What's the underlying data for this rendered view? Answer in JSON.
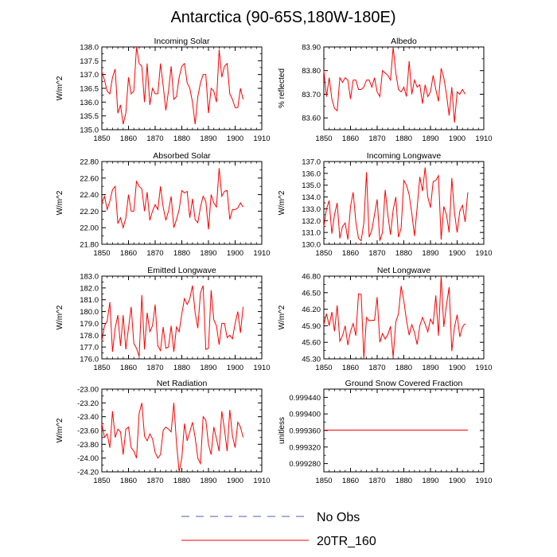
{
  "figure": {
    "title": "Antarctica (90-65S,180W-180E)",
    "colors": {
      "model": "#ff0000",
      "obs": "#5a5aaa",
      "axis": "#000000"
    }
  },
  "legend": {
    "entries": [
      {
        "label": "No Obs",
        "style": "dashed",
        "color": "#5a5aaa"
      },
      {
        "label": "20TR_160",
        "style": "solid",
        "color": "#ff0000"
      }
    ]
  },
  "chart_data": [
    {
      "type": "line",
      "title": "Incoming Solar",
      "ylabel": "W/m^2",
      "xlim": [
        1850,
        1910
      ],
      "ylim": [
        135.0,
        138.0
      ],
      "xticks": [
        "1850",
        "1860",
        "1870",
        "1880",
        "1890",
        "1900",
        "1910"
      ],
      "yticks": [
        "135.0",
        "135.5",
        "136.0",
        "136.5",
        "137.0",
        "137.5",
        "138.0"
      ],
      "x_start": 1850,
      "series": [
        {
          "name": "20TR_160",
          "values": [
            137.1,
            136.8,
            136.4,
            136.3,
            136.9,
            137.2,
            135.6,
            135.9,
            135.2,
            135.6,
            136.9,
            136.3,
            136.4,
            138.0,
            137.4,
            137.3,
            136.0,
            137.4,
            135.9,
            136.5,
            136.3,
            136.3,
            137.4,
            136.6,
            135.7,
            136.4,
            137.3,
            136.1,
            136.2,
            136.9,
            137.3,
            137.4,
            136.7,
            136.5,
            136.0,
            135.2,
            136.2,
            136.7,
            137.0,
            137.0,
            135.6,
            136.5,
            136.4,
            136.0,
            137.9,
            136.9,
            137.3,
            137.4,
            136.3,
            136.1,
            135.8,
            135.8,
            136.5,
            136.1
          ]
        }
      ]
    },
    {
      "type": "line",
      "title": "Albedo",
      "ylabel": "% reflected",
      "xlim": [
        1850,
        1910
      ],
      "ylim": [
        83.55,
        83.9
      ],
      "xticks": [
        "1850",
        "1860",
        "1870",
        "1880",
        "1890",
        "1900",
        "1910"
      ],
      "yticks": [
        "83.60",
        "83.70",
        "83.80",
        "83.90"
      ],
      "x_start": 1850,
      "series": [
        {
          "name": "20TR_160",
          "values": [
            83.8,
            83.69,
            83.77,
            83.68,
            83.64,
            83.63,
            83.77,
            83.75,
            83.77,
            83.76,
            83.68,
            83.76,
            83.76,
            83.72,
            83.72,
            83.73,
            83.76,
            83.76,
            83.73,
            83.77,
            83.71,
            83.69,
            83.8,
            83.79,
            83.78,
            83.76,
            83.9,
            83.79,
            83.72,
            83.71,
            83.73,
            83.69,
            83.84,
            83.7,
            83.76,
            83.73,
            83.74,
            83.66,
            83.74,
            83.69,
            83.71,
            83.78,
            83.72,
            83.67,
            83.81,
            83.77,
            83.7,
            83.61,
            83.73,
            83.58,
            83.71,
            83.7,
            83.72,
            83.7
          ]
        }
      ]
    },
    {
      "type": "line",
      "title": "Absorbed Solar",
      "ylabel": "W/m^2",
      "xlim": [
        1850,
        1910
      ],
      "ylim": [
        21.8,
        22.8
      ],
      "xticks": [
        "1850",
        "1860",
        "1870",
        "1880",
        "1890",
        "1900",
        "1910"
      ],
      "yticks": [
        "21.80",
        "22.00",
        "22.20",
        "22.40",
        "22.60",
        "22.80"
      ],
      "x_start": 1850,
      "series": [
        {
          "name": "20TR_160",
          "values": [
            22.3,
            22.38,
            22.22,
            22.32,
            22.46,
            22.5,
            22.05,
            22.12,
            22.0,
            22.12,
            22.4,
            22.2,
            22.2,
            22.56,
            22.5,
            22.47,
            22.2,
            22.43,
            22.09,
            22.2,
            22.28,
            22.22,
            22.5,
            22.25,
            22.09,
            22.2,
            22.38,
            22.0,
            22.1,
            22.22,
            22.45,
            22.42,
            22.44,
            22.12,
            22.35,
            22.1,
            22.06,
            22.25,
            22.38,
            22.32,
            21.98,
            22.4,
            22.3,
            22.25,
            22.72,
            22.38,
            22.44,
            22.45,
            22.1,
            22.22,
            22.22,
            22.24,
            22.3,
            22.25
          ]
        }
      ]
    },
    {
      "type": "line",
      "title": "Incoming Longwave",
      "ylabel": "W/m^2",
      "xlim": [
        1850,
        1910
      ],
      "ylim": [
        130.0,
        137.0
      ],
      "xticks": [
        "1850",
        "1860",
        "1870",
        "1880",
        "1890",
        "1900",
        "1910"
      ],
      "yticks": [
        "130.0",
        "131.0",
        "132.0",
        "133.0",
        "134.0",
        "135.0",
        "136.0",
        "137.0"
      ],
      "x_start": 1850,
      "series": [
        {
          "name": "20TR_160",
          "values": [
            131.5,
            133.0,
            133.7,
            130.9,
            132.5,
            133.5,
            130.5,
            131.5,
            131.8,
            130.4,
            133.2,
            134.4,
            131.9,
            130.5,
            130.3,
            131.8,
            136.1,
            130.6,
            131.2,
            132.5,
            133.8,
            130.3,
            131.0,
            134.6,
            132.5,
            130.8,
            132.9,
            134.0,
            130.6,
            131.4,
            135.4,
            135.0,
            134.2,
            132.6,
            130.7,
            133.1,
            135.7,
            134.5,
            136.5,
            134.0,
            133.1,
            135.3,
            135.4,
            135.8,
            130.4,
            133.2,
            132.5,
            131.0,
            135.6,
            132.7,
            131.0,
            132.8,
            133.3,
            131.9,
            134.4
          ]
        }
      ]
    },
    {
      "type": "line",
      "title": "Emitted Longwave",
      "ylabel": "W/m^2",
      "xlim": [
        1850,
        1910
      ],
      "ylim": [
        176.0,
        183.0
      ],
      "xticks": [
        "1850",
        "1860",
        "1870",
        "1880",
        "1890",
        "1900",
        "1910"
      ],
      "yticks": [
        "176.0",
        "177.0",
        "178.0",
        "179.0",
        "180.0",
        "181.0",
        "182.0",
        "183.0"
      ],
      "x_start": 1850,
      "series": [
        {
          "name": "20TR_160",
          "values": [
            177.5,
            178.8,
            179.2,
            180.8,
            176.6,
            178.6,
            179.7,
            177.1,
            179.7,
            176.8,
            178.6,
            180.4,
            177.3,
            176.9,
            176.2,
            181.4,
            176.8,
            179.9,
            178.3,
            178.8,
            180.6,
            177.1,
            176.7,
            178.7,
            176.9,
            177.0,
            178.8,
            176.6,
            178.7,
            178.3,
            179.8,
            181.1,
            180.6,
            181.1,
            182.2,
            179.9,
            178.6,
            181.6,
            182.2,
            176.8,
            176.9,
            181.8,
            179.3,
            178.8,
            177.2,
            179.0,
            179.0,
            177.8,
            178.0,
            177.7,
            179.0,
            180.0,
            178.2,
            180.4
          ]
        }
      ]
    },
    {
      "type": "line",
      "title": "Net Longwave",
      "ylabel": "W/m^2",
      "xlim": [
        1850,
        1910
      ],
      "ylim": [
        45.3,
        46.8
      ],
      "xticks": [
        "1850",
        "1860",
        "1870",
        "1880",
        "1890",
        "1900",
        "1910"
      ],
      "yticks": [
        "45.30",
        "45.60",
        "45.90",
        "46.20",
        "46.50",
        "46.80"
      ],
      "x_start": 1850,
      "series": [
        {
          "name": "20TR_160",
          "values": [
            45.92,
            46.12,
            45.9,
            46.15,
            45.8,
            46.27,
            45.62,
            45.72,
            45.9,
            45.55,
            45.8,
            45.94,
            45.72,
            46.48,
            46.47,
            45.31,
            46.05,
            45.99,
            46.0,
            46.0,
            46.42,
            45.6,
            45.76,
            45.66,
            45.74,
            45.89,
            45.33,
            45.97,
            46.12,
            46.62,
            46.35,
            46.0,
            45.73,
            45.92,
            45.78,
            45.56,
            45.9,
            46.05,
            45.93,
            45.79,
            46.02,
            45.93,
            46.45,
            45.72,
            46.8,
            45.88,
            46.28,
            46.6,
            45.44,
            45.87,
            46.1,
            45.7,
            45.88,
            45.94
          ]
        }
      ]
    },
    {
      "type": "line",
      "title": "Net Radiation",
      "ylabel": "W/m^2",
      "xlim": [
        1850,
        1910
      ],
      "ylim": [
        -24.2,
        -23.0
      ],
      "xticks": [
        "1850",
        "1860",
        "1870",
        "1880",
        "1890",
        "1900",
        "1910"
      ],
      "yticks": [
        "-23.00",
        "-23.20",
        "-23.40",
        "-23.60",
        "-23.80",
        "-24.00",
        "-24.20"
      ],
      "x_start": 1850,
      "series": [
        {
          "name": "20TR_160",
          "values": [
            -23.5,
            -23.7,
            -23.65,
            -23.85,
            -23.32,
            -23.7,
            -23.58,
            -23.62,
            -23.95,
            -23.58,
            -23.55,
            -23.85,
            -23.9,
            -24.0,
            -23.35,
            -23.2,
            -23.68,
            -23.75,
            -23.65,
            -23.72,
            -23.92,
            -24.0,
            -23.95,
            -23.6,
            -23.55,
            -23.58,
            -23.62,
            -23.2,
            -23.78,
            -24.2,
            -24.0,
            -23.5,
            -23.75,
            -23.62,
            -23.48,
            -23.7,
            -24.0,
            -24.08,
            -23.4,
            -23.45,
            -23.8,
            -23.95,
            -23.55,
            -23.72,
            -23.9,
            -23.32,
            -23.58,
            -23.9,
            -23.3,
            -23.68,
            -23.85,
            -23.48,
            -23.55,
            -23.7
          ]
        }
      ]
    },
    {
      "type": "line",
      "title": "Ground Snow Covered Fraction",
      "ylabel": "unitless",
      "xlim": [
        1850,
        1910
      ],
      "ylim": [
        0.99926,
        0.99946
      ],
      "xticks": [
        "1850",
        "1860",
        "1870",
        "1880",
        "1890",
        "1900",
        "1910"
      ],
      "yticks": [
        "0.999280",
        "0.999320",
        "0.999360",
        "0.999400",
        "0.999440"
      ],
      "x_start": 1850,
      "series": [
        {
          "name": "20TR_160",
          "values": [
            0.999361,
            0.999361,
            0.999361,
            0.999361,
            0.999361,
            0.999361,
            0.999361,
            0.999361,
            0.999361,
            0.999361,
            0.999361,
            0.999361,
            0.999361,
            0.999361,
            0.999361,
            0.999361,
            0.999361,
            0.999361,
            0.999361,
            0.999361,
            0.999361,
            0.999361,
            0.999361,
            0.999361,
            0.999361,
            0.999361,
            0.999361,
            0.999361,
            0.999361,
            0.999361,
            0.999361,
            0.999361,
            0.999361,
            0.999361,
            0.999361,
            0.999361,
            0.999361,
            0.999361,
            0.999361,
            0.999361,
            0.999361,
            0.999361,
            0.999361,
            0.999361,
            0.999361,
            0.999361,
            0.999361,
            0.999361,
            0.999361,
            0.999361,
            0.999361,
            0.999361,
            0.999361,
            0.999361,
            0.999361
          ]
        }
      ]
    }
  ]
}
